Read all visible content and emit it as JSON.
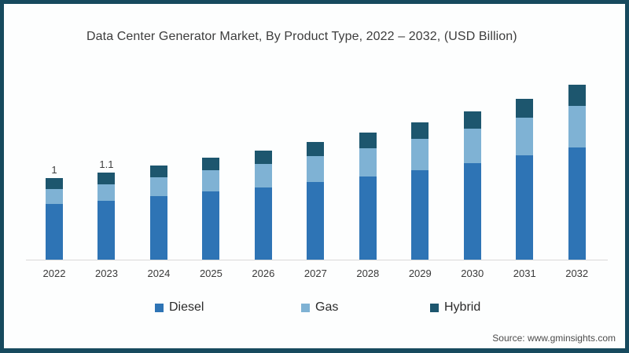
{
  "header": {
    "title": "Data Center Generator Market, By Product Type, 2022 – 2032, (USD Billion)"
  },
  "footer": {
    "source": "Source: www.gminsights.com"
  },
  "style": {
    "frame_border_color": "#174a5e",
    "axis_line_color": "#d9d9d9",
    "plot_background": "#fdfefe"
  },
  "chart_data": {
    "type": "bar",
    "stacked": true,
    "title": "Data Center Generator Market, By Product Type, 2022 – 2032, (USD Billion)",
    "unit": "USD Billion",
    "xlabel": "",
    "ylabel": "",
    "ylim": [
      0,
      2.5
    ],
    "grid": false,
    "legend_position": "bottom",
    "categories": [
      "2022",
      "2023",
      "2024",
      "2025",
      "2026",
      "2027",
      "2028",
      "2029",
      "2030",
      "2031",
      "2032"
    ],
    "series": [
      {
        "name": "Diesel",
        "color": "#2e74b5",
        "values": [
          0.7,
          0.74,
          0.79,
          0.85,
          0.9,
          0.97,
          1.04,
          1.12,
          1.21,
          1.3,
          1.4
        ]
      },
      {
        "name": "Gas",
        "color": "#7fb2d4",
        "values": [
          0.19,
          0.21,
          0.24,
          0.26,
          0.29,
          0.32,
          0.35,
          0.39,
          0.43,
          0.47,
          0.52
        ]
      },
      {
        "name": "Hybrid",
        "color": "#1d566e",
        "values": [
          0.14,
          0.15,
          0.15,
          0.16,
          0.17,
          0.18,
          0.2,
          0.21,
          0.22,
          0.24,
          0.26
        ]
      }
    ],
    "total_labels": [
      "1",
      "1.1",
      "",
      "",
      "",
      "",
      "",
      "",
      "",
      "",
      ""
    ]
  }
}
